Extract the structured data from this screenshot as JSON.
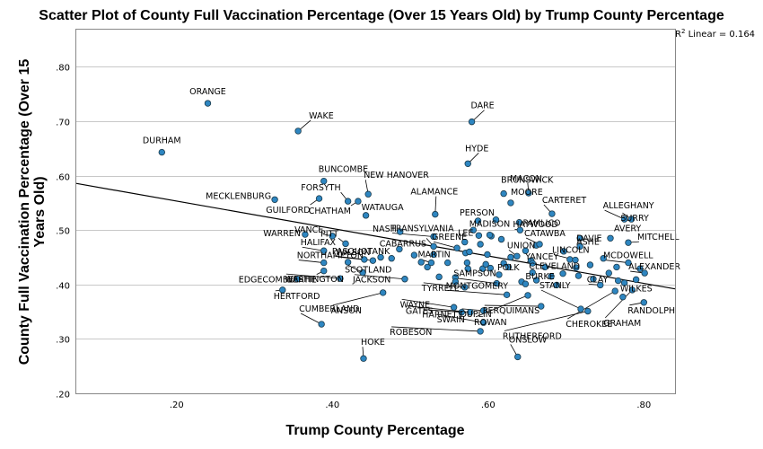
{
  "chart_data": {
    "type": "scatter",
    "title": "Scatter Plot of County Full Vaccination Percentage (Over 15 Years Old) by Trump County Percentage",
    "xlabel": "Trump County Percentage",
    "ylabel_line1": "County Full Vaccination Percentage (Over 15",
    "ylabel_line2": "Years Old)",
    "xlim": [
      0.07,
      0.84
    ],
    "ylim": [
      0.2,
      0.87
    ],
    "xticks": [
      0.2,
      0.4,
      0.6,
      0.8
    ],
    "xtick_labels": [
      ".20",
      ".40",
      ".60",
      ".80"
    ],
    "yticks": [
      0.2,
      0.3,
      0.4,
      0.5,
      0.6,
      0.7,
      0.8
    ],
    "ytick_labels": [
      ".20",
      ".30",
      ".40",
      ".50",
      ".60",
      ".70",
      ".80"
    ],
    "r2": {
      "prefix": "R",
      "sup": "2",
      "text": " Linear = 0.164"
    },
    "fit_line": {
      "x": [
        0.07,
        0.84
      ],
      "y": [
        0.586,
        0.392
      ]
    },
    "point_color": "#2e86c1",
    "labeled_points": [
      {
        "name": "ORANGE",
        "x": 0.24,
        "y": 0.733
      },
      {
        "name": "DURHAM",
        "x": 0.181,
        "y": 0.643
      },
      {
        "name": "WAKE",
        "x": 0.356,
        "y": 0.682
      },
      {
        "name": "DARE",
        "x": 0.579,
        "y": 0.699
      },
      {
        "name": "HYDE",
        "x": 0.574,
        "y": 0.622
      },
      {
        "name": "MECKLENBURG",
        "x": 0.326,
        "y": 0.556
      },
      {
        "name": "BUNCOMBE",
        "x": 0.389,
        "y": 0.59
      },
      {
        "name": "NEW HANOVER",
        "x": 0.446,
        "y": 0.566
      },
      {
        "name": "FORSYTH",
        "x": 0.42,
        "y": 0.553
      },
      {
        "name": "GUILFORD",
        "x": 0.383,
        "y": 0.558
      },
      {
        "name": "CHATHAM",
        "x": 0.433,
        "y": 0.553
      },
      {
        "name": "WATAUGA",
        "x": 0.443,
        "y": 0.527
      },
      {
        "name": "ALAMANCE",
        "x": 0.532,
        "y": 0.529
      },
      {
        "name": "BRUNSWICK",
        "x": 0.62,
        "y": 0.567
      },
      {
        "name": "MACON",
        "x": 0.652,
        "y": 0.568
      },
      {
        "name": "MOORE",
        "x": 0.629,
        "y": 0.55
      },
      {
        "name": "PERSON",
        "x": 0.587,
        "y": 0.517
      },
      {
        "name": "CARTERET",
        "x": 0.682,
        "y": 0.53
      },
      {
        "name": "ALLEGHANY",
        "x": 0.775,
        "y": 0.52
      },
      {
        "name": "MADISON",
        "x": 0.602,
        "y": 0.491
      },
      {
        "name": "HAYWOOD",
        "x": 0.641,
        "y": 0.5
      },
      {
        "name": "SURRY",
        "x": 0.784,
        "y": 0.52
      },
      {
        "name": "VANCE",
        "x": 0.4,
        "y": 0.489
      },
      {
        "name": "NASH",
        "x": 0.487,
        "y": 0.497
      },
      {
        "name": "TRANSYLVANIA",
        "x": 0.53,
        "y": 0.488
      },
      {
        "name": "PAMLICO",
        "x": 0.64,
        "y": 0.514
      },
      {
        "name": "DAVIE",
        "x": 0.718,
        "y": 0.485
      },
      {
        "name": "AVERY",
        "x": 0.757,
        "y": 0.485
      },
      {
        "name": "WARREN",
        "x": 0.365,
        "y": 0.492
      },
      {
        "name": "PITT",
        "x": 0.417,
        "y": 0.475
      },
      {
        "name": "LEE",
        "x": 0.588,
        "y": 0.49
      },
      {
        "name": "CATAWBA",
        "x": 0.666,
        "y": 0.474
      },
      {
        "name": "ASHE",
        "x": 0.718,
        "y": 0.47
      },
      {
        "name": "CABARRUS",
        "x": 0.53,
        "y": 0.47
      },
      {
        "name": "MITCHELL",
        "x": 0.78,
        "y": 0.477
      },
      {
        "name": "HALIFAX",
        "x": 0.389,
        "y": 0.462
      },
      {
        "name": "PASQUOTANK",
        "x": 0.441,
        "y": 0.446
      },
      {
        "name": "GREENE",
        "x": 0.56,
        "y": 0.467
      },
      {
        "name": "UNION",
        "x": 0.637,
        "y": 0.452
      },
      {
        "name": "LINCOLN",
        "x": 0.712,
        "y": 0.445
      },
      {
        "name": "MCDOWELL",
        "x": 0.78,
        "y": 0.44
      },
      {
        "name": "NORTHAMPTON",
        "x": 0.389,
        "y": 0.44
      },
      {
        "name": "WILSON",
        "x": 0.452,
        "y": 0.444
      },
      {
        "name": "MARTIN",
        "x": 0.527,
        "y": 0.44
      },
      {
        "name": "YANCEY",
        "x": 0.657,
        "y": 0.439
      },
      {
        "name": "ALEXANDER",
        "x": 0.801,
        "y": 0.421
      },
      {
        "name": "BERTIE",
        "x": 0.389,
        "y": 0.425
      },
      {
        "name": "SCOTLAND",
        "x": 0.439,
        "y": 0.422
      },
      {
        "name": "CLEVELAND",
        "x": 0.657,
        "y": 0.422
      },
      {
        "name": "EDGECOMBE",
        "x": 0.355,
        "y": 0.41
      },
      {
        "name": "WASHINGTON",
        "x": 0.41,
        "y": 0.411
      },
      {
        "name": "JACKSON",
        "x": 0.493,
        "y": 0.41
      },
      {
        "name": "POLK",
        "x": 0.614,
        "y": 0.418
      },
      {
        "name": "SAMPSON",
        "x": 0.611,
        "y": 0.402
      },
      {
        "name": "BURKE",
        "x": 0.648,
        "y": 0.401
      },
      {
        "name": "CLAY",
        "x": 0.744,
        "y": 0.399
      },
      {
        "name": "TYRRELL",
        "x": 0.57,
        "y": 0.395
      },
      {
        "name": "HERTFORD",
        "x": 0.336,
        "y": 0.39
      },
      {
        "name": "MONTGOMERY",
        "x": 0.624,
        "y": 0.381
      },
      {
        "name": "ANSON",
        "x": 0.465,
        "y": 0.385
      },
      {
        "name": "WILKES",
        "x": 0.773,
        "y": 0.377
      },
      {
        "name": "STANLY",
        "x": 0.719,
        "y": 0.355
      },
      {
        "name": "RANDOLPH",
        "x": 0.8,
        "y": 0.367
      },
      {
        "name": "WAYNE",
        "x": 0.556,
        "y": 0.358
      },
      {
        "name": "DUPLIN",
        "x": 0.594,
        "y": 0.352
      },
      {
        "name": "GATES",
        "x": 0.577,
        "y": 0.349
      },
      {
        "name": "CUMBERLAND",
        "x": 0.386,
        "y": 0.327
      },
      {
        "name": "HARNETT",
        "x": 0.566,
        "y": 0.349
      },
      {
        "name": "PERQUIMANS",
        "x": 0.668,
        "y": 0.36
      },
      {
        "name": "CHEROKEE",
        "x": 0.763,
        "y": 0.388
      },
      {
        "name": "GRAHAM",
        "x": 0.785,
        "y": 0.39
      },
      {
        "name": "ROWAN",
        "x": 0.651,
        "y": 0.38
      },
      {
        "name": "RUTHERFORD",
        "x": 0.728,
        "y": 0.351
      },
      {
        "name": "SWAIN",
        "x": 0.594,
        "y": 0.33
      },
      {
        "name": "ROBESON",
        "x": 0.59,
        "y": 0.314
      },
      {
        "name": "ONSLOW",
        "x": 0.638,
        "y": 0.267
      },
      {
        "name": "HOKE",
        "x": 0.44,
        "y": 0.264
      }
    ],
    "unlabeled_points": [
      {
        "x": 0.42,
        "y": 0.441
      },
      {
        "x": 0.462,
        "y": 0.45
      },
      {
        "x": 0.476,
        "y": 0.448
      },
      {
        "x": 0.486,
        "y": 0.465
      },
      {
        "x": 0.505,
        "y": 0.454
      },
      {
        "x": 0.514,
        "y": 0.441
      },
      {
        "x": 0.522,
        "y": 0.432
      },
      {
        "x": 0.537,
        "y": 0.414
      },
      {
        "x": 0.558,
        "y": 0.413
      },
      {
        "x": 0.558,
        "y": 0.405
      },
      {
        "x": 0.57,
        "y": 0.478
      },
      {
        "x": 0.571,
        "y": 0.458
      },
      {
        "x": 0.573,
        "y": 0.44
      },
      {
        "x": 0.574,
        "y": 0.429
      },
      {
        "x": 0.576,
        "y": 0.46
      },
      {
        "x": 0.581,
        "y": 0.5
      },
      {
        "x": 0.59,
        "y": 0.474
      },
      {
        "x": 0.593,
        "y": 0.429
      },
      {
        "x": 0.597,
        "y": 0.437
      },
      {
        "x": 0.599,
        "y": 0.455
      },
      {
        "x": 0.603,
        "y": 0.43
      },
      {
        "x": 0.604,
        "y": 0.489
      },
      {
        "x": 0.61,
        "y": 0.519
      },
      {
        "x": 0.617,
        "y": 0.483
      },
      {
        "x": 0.62,
        "y": 0.439
      },
      {
        "x": 0.626,
        "y": 0.432
      },
      {
        "x": 0.629,
        "y": 0.45
      },
      {
        "x": 0.643,
        "y": 0.405
      },
      {
        "x": 0.655,
        "y": 0.444
      },
      {
        "x": 0.662,
        "y": 0.408
      },
      {
        "x": 0.673,
        "y": 0.432
      },
      {
        "x": 0.681,
        "y": 0.415
      },
      {
        "x": 0.688,
        "y": 0.399
      },
      {
        "x": 0.696,
        "y": 0.42
      },
      {
        "x": 0.705,
        "y": 0.446
      },
      {
        "x": 0.713,
        "y": 0.431
      },
      {
        "x": 0.716,
        "y": 0.416
      },
      {
        "x": 0.731,
        "y": 0.436
      },
      {
        "x": 0.735,
        "y": 0.41
      },
      {
        "x": 0.748,
        "y": 0.448
      },
      {
        "x": 0.755,
        "y": 0.421
      },
      {
        "x": 0.765,
        "y": 0.432
      },
      {
        "x": 0.767,
        "y": 0.407
      },
      {
        "x": 0.775,
        "y": 0.403
      },
      {
        "x": 0.79,
        "y": 0.409
      },
      {
        "x": 0.795,
        "y": 0.429
      },
      {
        "x": 0.662,
        "y": 0.472
      },
      {
        "x": 0.697,
        "y": 0.461
      },
      {
        "x": 0.548,
        "y": 0.44
      },
      {
        "x": 0.53,
        "y": 0.455
      },
      {
        "x": 0.648,
        "y": 0.462
      }
    ]
  }
}
